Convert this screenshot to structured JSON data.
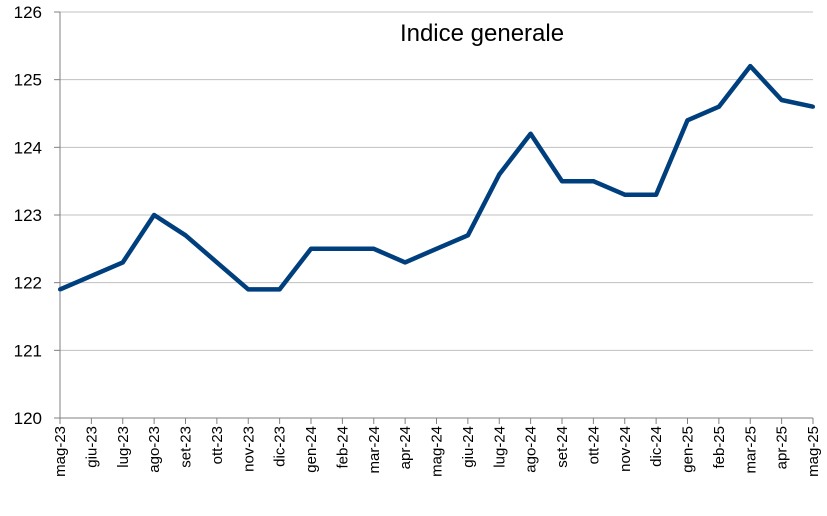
{
  "chart_data": {
    "type": "line",
    "title": "Indice generale",
    "xlabel": "",
    "ylabel": "",
    "ylim": [
      120,
      126
    ],
    "yticks": [
      120,
      121,
      122,
      123,
      124,
      125,
      126
    ],
    "grid": true,
    "legend": "none",
    "line_color": "#003f7d",
    "grid_color": "#c0c0c0",
    "axis_color": "#808080",
    "categories": [
      "mag-23",
      "giu-23",
      "lug-23",
      "ago-23",
      "set-23",
      "ott-23",
      "nov-23",
      "dic-23",
      "gen-24",
      "feb-24",
      "mar-24",
      "apr-24",
      "mag-24",
      "giu-24",
      "lug-24",
      "ago-24",
      "set-24",
      "ott-24",
      "nov-24",
      "dic-24",
      "gen-25",
      "feb-25",
      "mar-25",
      "apr-25",
      "mag-25"
    ],
    "series": [
      {
        "values": [
          121.9,
          122.1,
          122.3,
          123.0,
          122.7,
          122.3,
          121.9,
          121.9,
          122.5,
          122.5,
          122.5,
          122.3,
          122.5,
          122.7,
          123.6,
          124.2,
          123.5,
          123.5,
          123.3,
          123.3,
          124.4,
          124.6,
          125.2,
          124.7,
          124.6
        ]
      }
    ]
  }
}
